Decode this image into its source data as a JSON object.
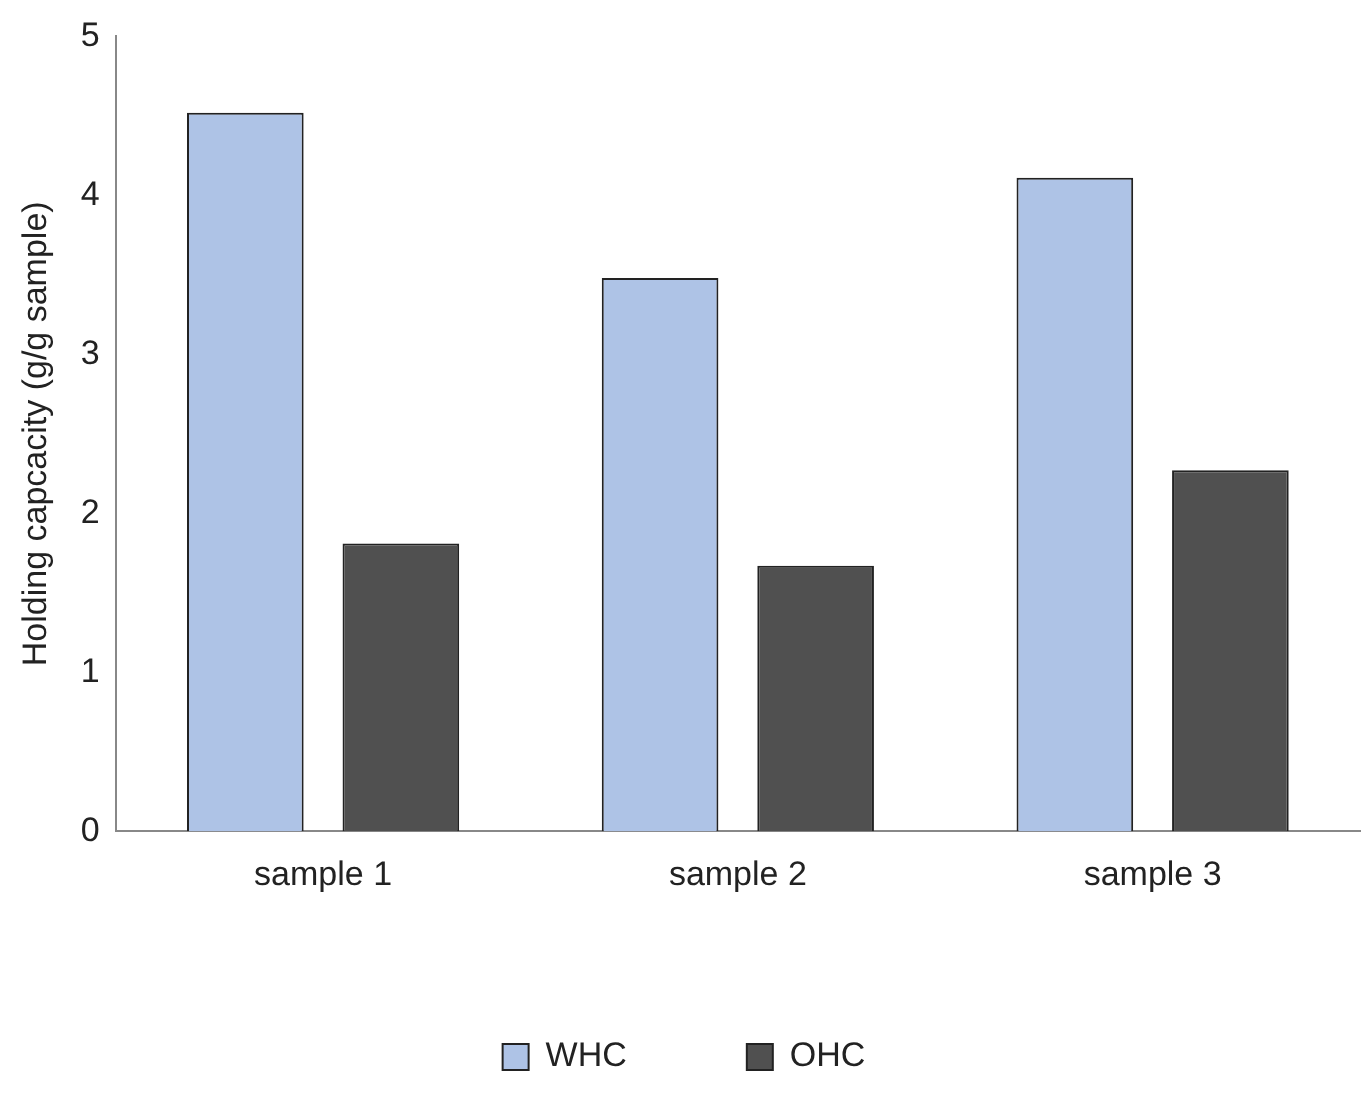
{
  "chart_data": {
    "type": "bar",
    "ylabel": "Holding capcacity (g/g sample)",
    "categories": [
      "sample 1",
      "sample 2",
      "sample 3"
    ],
    "series": [
      {
        "name": "WHC",
        "color": "#aec3e6",
        "values": [
          4.52,
          3.48,
          4.11
        ]
      },
      {
        "name": "OHC",
        "color": "#505050",
        "values": [
          1.81,
          1.67,
          2.27
        ]
      }
    ],
    "ylim": [
      0,
      5
    ],
    "yticks": [
      0,
      1,
      2,
      3,
      4,
      5
    ],
    "grid": false,
    "legend": "bottom"
  }
}
